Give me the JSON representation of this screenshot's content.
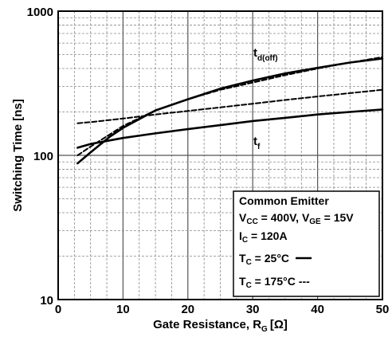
{
  "chart_data": {
    "type": "line",
    "title": "",
    "xlabel": "Gate Resistance, R",
    "xlabel_sub": "G",
    "xlabel_unit": "[Ω]",
    "ylabel": "Switching Time [ns]",
    "xlim": [
      0,
      50
    ],
    "ylim": [
      10,
      1000
    ],
    "yscale": "log",
    "grid": true,
    "xticks": [
      0,
      10,
      20,
      30,
      40,
      50
    ],
    "yticks": [
      10,
      100,
      1000
    ],
    "annotations": [
      {
        "text": "t",
        "sub": "d(off)"
      },
      {
        "text": "t",
        "sub": "f"
      }
    ],
    "legend": {
      "placement": "bottom-right",
      "lines": [
        {
          "text": "Common Emitter"
        },
        {
          "parts": [
            {
              "t": "V"
            },
            {
              "s": "CC"
            },
            {
              "t": " = 400V, V"
            },
            {
              "s": "GE"
            },
            {
              "t": " = 15V"
            }
          ]
        },
        {
          "parts": [
            {
              "t": "I"
            },
            {
              "s": "C"
            },
            {
              "t": " = 120A"
            }
          ]
        },
        {
          "parts": [
            {
              "t": "T"
            },
            {
              "s": "C"
            },
            {
              "t": " = 25°C"
            }
          ],
          "style": "solid"
        },
        {
          "parts": [
            {
              "t": "T"
            },
            {
              "s": "C"
            },
            {
              "t": " = 175°C"
            }
          ],
          "style": "dashed"
        }
      ]
    },
    "series": [
      {
        "curve": "td(off)",
        "condition": "25",
        "style": "solid",
        "x": [
          3,
          5,
          8,
          10,
          15,
          20,
          25,
          30,
          35,
          40,
          45,
          50
        ],
        "y": [
          88,
          105,
          135,
          155,
          205,
          245,
          290,
          330,
          370,
          405,
          440,
          470
        ]
      },
      {
        "curve": "td(off)",
        "condition": "175",
        "style": "dashed",
        "x": [
          3,
          5,
          8,
          10,
          15,
          20,
          25,
          30,
          35,
          40,
          45,
          50
        ],
        "y": [
          100,
          115,
          140,
          160,
          205,
          245,
          285,
          320,
          360,
          400,
          440,
          480
        ]
      },
      {
        "curve": "tf",
        "condition": "25",
        "style": "solid",
        "x": [
          3,
          5,
          8,
          10,
          15,
          20,
          25,
          30,
          35,
          40,
          45,
          50
        ],
        "y": [
          113,
          120,
          127,
          132,
          142,
          152,
          162,
          173,
          182,
          192,
          200,
          208
        ]
      },
      {
        "curve": "tf",
        "condition": "175",
        "style": "dashed",
        "x": [
          3,
          5,
          8,
          10,
          15,
          20,
          25,
          30,
          35,
          40,
          45,
          50
        ],
        "y": [
          167,
          170,
          176,
          180,
          192,
          203,
          215,
          228,
          242,
          256,
          270,
          285
        ]
      }
    ]
  }
}
